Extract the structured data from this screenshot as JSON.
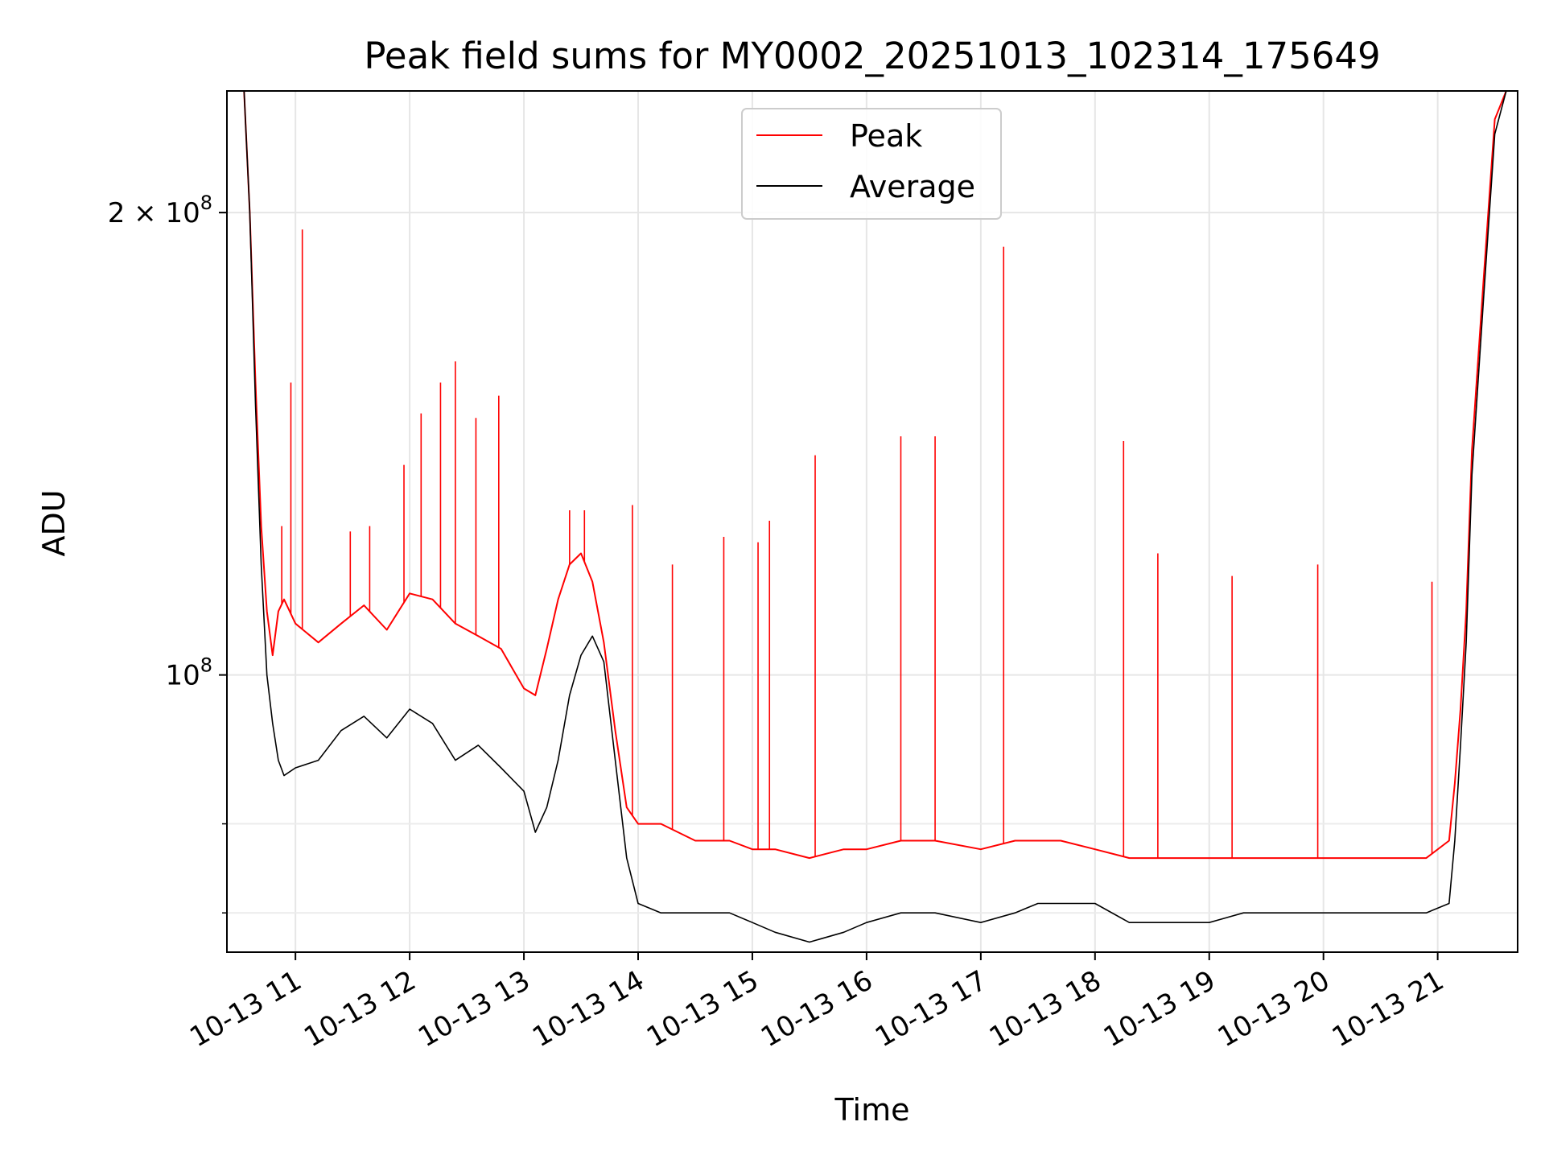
{
  "chart_data": {
    "type": "line",
    "title": "Peak field sums for MY0002_20251013_102314_175649",
    "xlabel": "Time",
    "ylabel": "ADU",
    "yscale": "log",
    "grid": true,
    "legend_position": "upper-center",
    "xlim_hours": [
      10.4,
      21.7
    ],
    "ylim": [
      66000000,
      240000000
    ],
    "x_ticks": [
      {
        "value": 11,
        "label": "10-13 11"
      },
      {
        "value": 12,
        "label": "10-13 12"
      },
      {
        "value": 13,
        "label": "10-13 13"
      },
      {
        "value": 14,
        "label": "10-13 14"
      },
      {
        "value": 15,
        "label": "10-13 15"
      },
      {
        "value": 16,
        "label": "10-13 16"
      },
      {
        "value": 17,
        "label": "10-13 17"
      },
      {
        "value": 18,
        "label": "10-13 18"
      },
      {
        "value": 19,
        "label": "10-13 19"
      },
      {
        "value": 20,
        "label": "10-13 20"
      },
      {
        "value": 21,
        "label": "10-13 21"
      }
    ],
    "y_major_ticks": [
      {
        "value": 100000000,
        "base": "10",
        "exp": "8"
      },
      {
        "value": 200000000,
        "base": "2 × 10",
        "exp": "8"
      }
    ],
    "y_minor_ticks": [
      70000000,
      80000000
    ],
    "series": [
      {
        "name": "Peak",
        "color": "#ff0000",
        "x": [
          10.4,
          10.55,
          10.6,
          10.65,
          10.7,
          10.75,
          10.8,
          10.85,
          10.9,
          11.0,
          11.2,
          11.4,
          11.6,
          11.8,
          12.0,
          12.2,
          12.4,
          12.6,
          12.8,
          13.0,
          13.1,
          13.2,
          13.3,
          13.4,
          13.5,
          13.6,
          13.7,
          13.8,
          13.9,
          14.0,
          14.2,
          14.5,
          14.8,
          15.0,
          15.2,
          15.5,
          15.8,
          16.0,
          16.3,
          16.6,
          17.0,
          17.3,
          17.5,
          17.7,
          18.0,
          18.3,
          18.6,
          18.9,
          19.0,
          19.3,
          19.6,
          20.0,
          20.3,
          20.6,
          20.9,
          21.1,
          21.15,
          21.2,
          21.25,
          21.3,
          21.4,
          21.5,
          21.6,
          21.7
        ],
        "values": [
          240000000,
          240000000,
          200000000,
          155000000,
          125000000,
          110000000,
          103000000,
          110000000,
          112000000,
          108000000,
          105000000,
          108000000,
          111000000,
          107000000,
          113000000,
          112000000,
          108000000,
          106000000,
          104000000,
          98000000,
          97000000,
          104000000,
          112000000,
          118000000,
          120000000,
          115000000,
          105000000,
          92000000,
          82000000,
          80000000,
          80000000,
          78000000,
          78000000,
          77000000,
          77000000,
          76000000,
          77000000,
          77000000,
          78000000,
          78000000,
          77000000,
          78000000,
          78000000,
          78000000,
          77000000,
          76000000,
          76000000,
          76000000,
          76000000,
          76000000,
          76000000,
          76000000,
          76000000,
          76000000,
          76000000,
          78000000,
          85000000,
          95000000,
          110000000,
          140000000,
          180000000,
          230000000,
          240000000,
          240000000
        ]
      },
      {
        "name": "Average",
        "color": "#000000",
        "x": [
          10.4,
          10.55,
          10.6,
          10.65,
          10.7,
          10.75,
          10.8,
          10.85,
          10.9,
          11.0,
          11.2,
          11.4,
          11.6,
          11.8,
          12.0,
          12.2,
          12.4,
          12.6,
          12.8,
          13.0,
          13.1,
          13.2,
          13.3,
          13.4,
          13.5,
          13.6,
          13.7,
          13.8,
          13.9,
          14.0,
          14.2,
          14.5,
          14.8,
          15.0,
          15.2,
          15.5,
          15.8,
          16.0,
          16.3,
          16.6,
          17.0,
          17.3,
          17.5,
          17.7,
          18.0,
          18.3,
          18.6,
          18.9,
          19.0,
          19.3,
          19.6,
          20.0,
          20.3,
          20.6,
          20.9,
          21.1,
          21.15,
          21.2,
          21.25,
          21.3,
          21.4,
          21.5,
          21.6,
          21.7
        ],
        "values": [
          240000000,
          240000000,
          200000000,
          150000000,
          118000000,
          100000000,
          93000000,
          88000000,
          86000000,
          87000000,
          88000000,
          92000000,
          94000000,
          91000000,
          95000000,
          93000000,
          88000000,
          90000000,
          87000000,
          84000000,
          79000000,
          82000000,
          88000000,
          97000000,
          103000000,
          106000000,
          102000000,
          88000000,
          76000000,
          71000000,
          70000000,
          70000000,
          70000000,
          69000000,
          68000000,
          67000000,
          68000000,
          69000000,
          70000000,
          70000000,
          69000000,
          70000000,
          71000000,
          71000000,
          71000000,
          69000000,
          69000000,
          69000000,
          69000000,
          70000000,
          70000000,
          70000000,
          70000000,
          70000000,
          70000000,
          71000000,
          78000000,
          90000000,
          105000000,
          135000000,
          175000000,
          225000000,
          240000000,
          240000000
        ]
      }
    ],
    "spikes": [
      {
        "series": "Peak",
        "x": 10.88,
        "value": 125000000
      },
      {
        "series": "Peak",
        "x": 10.96,
        "value": 155000000
      },
      {
        "series": "Peak",
        "x": 11.06,
        "value": 195000000
      },
      {
        "series": "Peak",
        "x": 11.48,
        "value": 124000000
      },
      {
        "series": "Peak",
        "x": 11.65,
        "value": 125000000
      },
      {
        "series": "Peak",
        "x": 11.95,
        "value": 137000000
      },
      {
        "series": "Peak",
        "x": 12.1,
        "value": 148000000
      },
      {
        "series": "Peak",
        "x": 12.27,
        "value": 155000000
      },
      {
        "series": "Peak",
        "x": 12.4,
        "value": 160000000
      },
      {
        "series": "Peak",
        "x": 12.58,
        "value": 147000000
      },
      {
        "series": "Peak",
        "x": 12.78,
        "value": 152000000
      },
      {
        "series": "Peak",
        "x": 13.4,
        "value": 128000000
      },
      {
        "series": "Peak",
        "x": 13.53,
        "value": 128000000
      },
      {
        "series": "Peak",
        "x": 13.95,
        "value": 129000000
      },
      {
        "series": "Peak",
        "x": 14.3,
        "value": 118000000
      },
      {
        "series": "Peak",
        "x": 14.75,
        "value": 123000000
      },
      {
        "series": "Peak",
        "x": 15.05,
        "value": 122000000
      },
      {
        "series": "Peak",
        "x": 15.15,
        "value": 126000000
      },
      {
        "series": "Peak",
        "x": 15.55,
        "value": 139000000
      },
      {
        "series": "Peak",
        "x": 16.3,
        "value": 143000000
      },
      {
        "series": "Peak",
        "x": 16.6,
        "value": 143000000
      },
      {
        "series": "Peak",
        "x": 17.2,
        "value": 190000000
      },
      {
        "series": "Peak",
        "x": 18.25,
        "value": 142000000
      },
      {
        "series": "Peak",
        "x": 18.55,
        "value": 120000000
      },
      {
        "series": "Peak",
        "x": 19.2,
        "value": 116000000
      },
      {
        "series": "Peak",
        "x": 19.95,
        "value": 118000000
      },
      {
        "series": "Peak",
        "x": 20.95,
        "value": 115000000
      }
    ]
  }
}
